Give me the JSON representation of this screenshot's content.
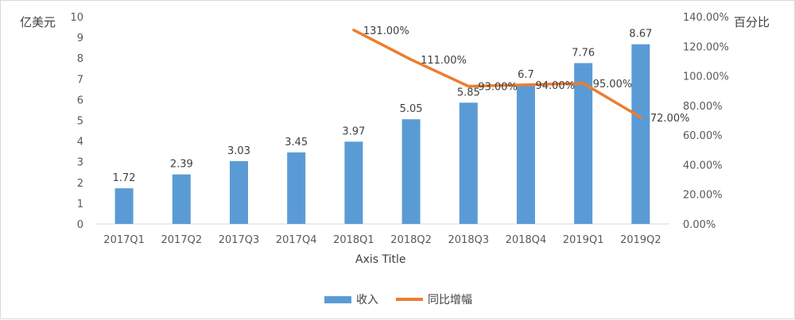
{
  "chart_data": {
    "type": "bar",
    "title": "",
    "categories": [
      "2017Q1",
      "2017Q2",
      "2017Q3",
      "2017Q4",
      "2018Q1",
      "2018Q2",
      "2018Q3",
      "2018Q4",
      "2019Q1",
      "2019Q2"
    ],
    "series": [
      {
        "name": "收入",
        "type": "bar",
        "axis": "left",
        "color": "#5b9bd5",
        "values": [
          1.72,
          2.39,
          3.03,
          3.45,
          3.97,
          5.05,
          5.85,
          6.7,
          7.76,
          8.67
        ],
        "labels": [
          "1.72",
          "2.39",
          "3.03",
          "3.45",
          "3.97",
          "5.05",
          "5.85",
          "6.7",
          "7.76",
          "8.67"
        ]
      },
      {
        "name": "同比增幅",
        "type": "line",
        "axis": "right",
        "color": "#ed7d31",
        "values": [
          null,
          null,
          null,
          null,
          131,
          111,
          93,
          94,
          95,
          72
        ],
        "labels": [
          "",
          "",
          "",
          "",
          "131.00%",
          "111.00%",
          "93.00%",
          "94.00%",
          "95.00%",
          "72.00%"
        ]
      }
    ],
    "xlabel": "Axis Title",
    "ylabel_left": "亿美元",
    "ylabel_right": "百分比",
    "ylim_left": [
      0,
      10
    ],
    "yticks_left": [
      "0",
      "1",
      "2",
      "3",
      "4",
      "5",
      "6",
      "7",
      "8",
      "9",
      "10"
    ],
    "ylim_right": [
      0,
      140
    ],
    "yticks_right": [
      "0.00%",
      "20.00%",
      "40.00%",
      "60.00%",
      "80.00%",
      "100.00%",
      "120.00%",
      "140.00%"
    ],
    "grid": false,
    "legend_position": "bottom"
  }
}
